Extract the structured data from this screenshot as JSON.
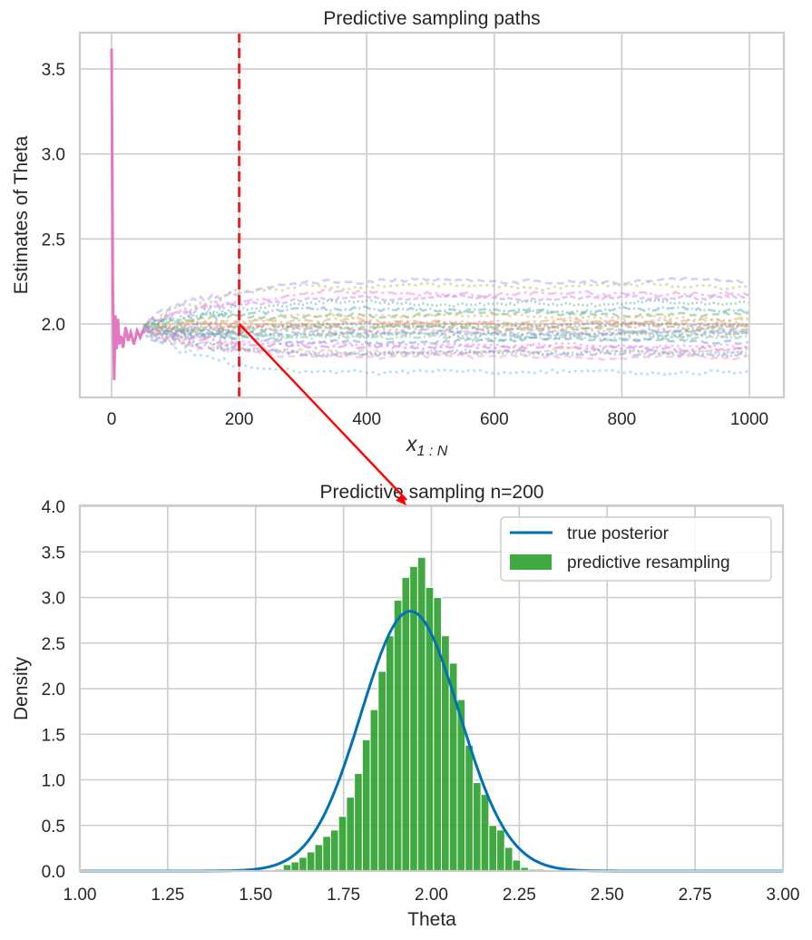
{
  "chart_data": [
    {
      "type": "line",
      "title": "Predictive sampling paths",
      "xlabel": "x_{1:N}",
      "xlabel_main": "x",
      "xlabel_sub": "1 : N",
      "ylabel": "Estimates of Theta",
      "xlim": [
        -50,
        1050
      ],
      "ylim": [
        1.6,
        3.72
      ],
      "xticks": [
        0,
        200,
        400,
        600,
        800,
        1000
      ],
      "xtick_labels": [
        "0",
        "200",
        "400",
        "600",
        "800",
        "1000"
      ],
      "yticks": [
        2.0,
        2.5,
        3.0,
        3.5
      ],
      "ytick_labels": [
        "2.0",
        "2.5",
        "3.0",
        "3.5"
      ],
      "grid": true,
      "observed_path": {
        "name": "observed",
        "color": "#e377c2",
        "x": [
          0,
          2,
          4,
          6,
          8,
          10,
          12,
          15,
          18,
          22,
          26,
          30,
          35,
          40,
          45,
          50
        ],
        "y": [
          3.62,
          2.2,
          1.67,
          2.05,
          1.85,
          2.03,
          1.88,
          1.93,
          1.86,
          1.98,
          1.9,
          1.95,
          1.88,
          1.96,
          1.92,
          1.97
        ]
      },
      "vline": {
        "x": 200,
        "color": "#e8262a",
        "style": "dashed"
      },
      "sampled_path_finals": [
        2.25,
        2.22,
        2.18,
        2.15,
        2.12,
        2.08,
        2.06,
        2.04,
        2.02,
        2.0,
        1.99,
        1.98,
        1.97,
        1.96,
        1.95,
        1.94,
        1.93,
        1.92,
        1.9,
        1.88,
        1.86,
        1.84,
        1.83,
        1.82,
        1.81,
        1.72
      ],
      "sampled_path_colors": [
        "#a1a1f5",
        "#c8b46a",
        "#f08ad0",
        "#c78af5",
        "#4cb08a",
        "#58a7c9",
        "#6cb85c",
        "#e8a87c",
        "#d0b060",
        "#f07a7a",
        "#4cb0b0",
        "#c88a60",
        "#70c070",
        "#f090c0",
        "#8aa0e8",
        "#60b0d0",
        "#b0a060",
        "#80c0a0",
        "#5ca0d8",
        "#e88ae0",
        "#d070e8",
        "#e8b090",
        "#60c0c0",
        "#9090f0",
        "#f0a0c0",
        "#6ec3e8"
      ]
    },
    {
      "type": "bar",
      "title": "Predictive sampling n=200",
      "xlabel": "Theta",
      "ylabel": "Density",
      "xlim": [
        1.0,
        3.0
      ],
      "ylim": [
        0.0,
        4.0
      ],
      "xticks": [
        1.0,
        1.25,
        1.5,
        1.75,
        2.0,
        2.25,
        2.5,
        2.75,
        3.0
      ],
      "xtick_labels": [
        "1.00",
        "1.25",
        "1.50",
        "1.75",
        "2.00",
        "2.25",
        "2.50",
        "2.75",
        "3.00"
      ],
      "yticks": [
        0.0,
        0.5,
        1.0,
        1.5,
        2.0,
        2.5,
        3.0,
        3.5,
        4.0
      ],
      "ytick_labels": [
        "0.0",
        "0.5",
        "1.0",
        "1.5",
        "2.0",
        "2.5",
        "3.0",
        "3.5",
        "4.0"
      ],
      "grid": true,
      "legend_position": "top-right",
      "series": [
        {
          "name": "true posterior",
          "kind": "line",
          "color": "#0072b2",
          "distribution": "normal",
          "mean": 1.94,
          "sd": 0.14
        },
        {
          "name": "predictive resampling",
          "kind": "histogram",
          "color": "#2ca02c",
          "bin_start": 1.556,
          "bin_width": 0.0225,
          "values": [
            0.02,
            0.07,
            0.1,
            0.15,
            0.21,
            0.29,
            0.38,
            0.45,
            0.6,
            0.81,
            1.07,
            1.44,
            1.77,
            2.19,
            2.58,
            2.97,
            3.22,
            3.34,
            3.44,
            3.11,
            3.0,
            2.58,
            2.28,
            1.88,
            1.38,
            0.97,
            0.84,
            0.5,
            0.45,
            0.26,
            0.12,
            0.04,
            0.02,
            0.02
          ]
        }
      ]
    }
  ],
  "annotation": {
    "from_x": 200,
    "from_y": 2.0,
    "color": "#ff0000"
  }
}
